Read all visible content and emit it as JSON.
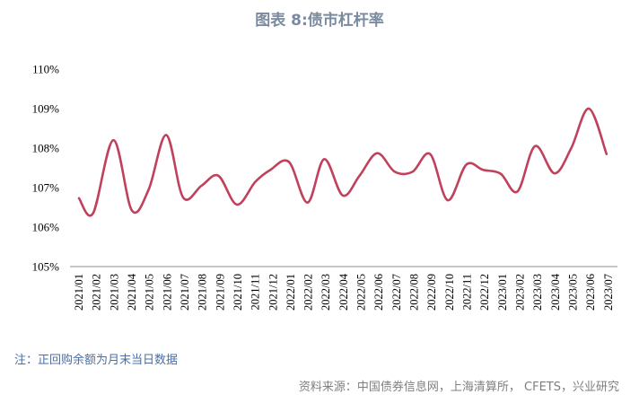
{
  "chart_data": {
    "type": "line",
    "title": "图表 8:债市杠杆率",
    "xlabel": "",
    "ylabel": "",
    "ylim": [
      1.05,
      1.1
    ],
    "yticks": [
      1.05,
      1.06,
      1.07,
      1.08,
      1.09,
      1.1
    ],
    "ytick_labels": [
      "105%",
      "106%",
      "107%",
      "108%",
      "109%",
      "110%"
    ],
    "categories": [
      "2021/01",
      "2021/02",
      "2021/03",
      "2021/04",
      "2021/05",
      "2021/06",
      "2021/07",
      "2021/08",
      "2021/09",
      "2021/10",
      "2021/11",
      "2021/12",
      "2022/01",
      "2022/02",
      "2022/03",
      "2022/04",
      "2022/05",
      "2022/06",
      "2022/07",
      "2022/08",
      "2022/09",
      "2022/10",
      "2022/11",
      "2022/12",
      "2023/01",
      "2023/02",
      "2023/03",
      "2023/04",
      "2023/05",
      "2023/06",
      "2023/07"
    ],
    "series": [
      {
        "name": "债市杠杆率",
        "color": "#c0415c",
        "points": [
          [
            0,
            1.0673
          ],
          [
            0.8,
            1.0635
          ],
          [
            1.95,
            1.082
          ],
          [
            3.0,
            1.0642
          ],
          [
            3.95,
            1.0695
          ],
          [
            4.95,
            1.0833
          ],
          [
            5.9,
            1.0675
          ],
          [
            6.95,
            1.0705
          ],
          [
            7.9,
            1.073
          ],
          [
            8.95,
            1.0657
          ],
          [
            10.0,
            1.0715
          ],
          [
            10.85,
            1.0745
          ],
          [
            11.9,
            1.0765
          ],
          [
            12.95,
            1.0662
          ],
          [
            13.9,
            1.0772
          ],
          [
            14.95,
            1.068
          ],
          [
            15.9,
            1.073
          ],
          [
            16.9,
            1.0787
          ],
          [
            17.9,
            1.074
          ],
          [
            18.9,
            1.074
          ],
          [
            19.9,
            1.0785
          ],
          [
            20.9,
            1.0668
          ],
          [
            21.95,
            1.0758
          ],
          [
            22.9,
            1.0745
          ],
          [
            23.9,
            1.0735
          ],
          [
            24.85,
            1.069
          ],
          [
            25.85,
            1.0805
          ],
          [
            26.95,
            1.0736
          ],
          [
            27.9,
            1.08
          ],
          [
            28.9,
            1.09
          ],
          [
            29.9,
            1.0785
          ]
        ]
      }
    ]
  },
  "footnote": "注：正回购余额为月末当日数据",
  "source": "资料来源：中国债券信息网，上海清算所，  CFETS，兴业研究"
}
